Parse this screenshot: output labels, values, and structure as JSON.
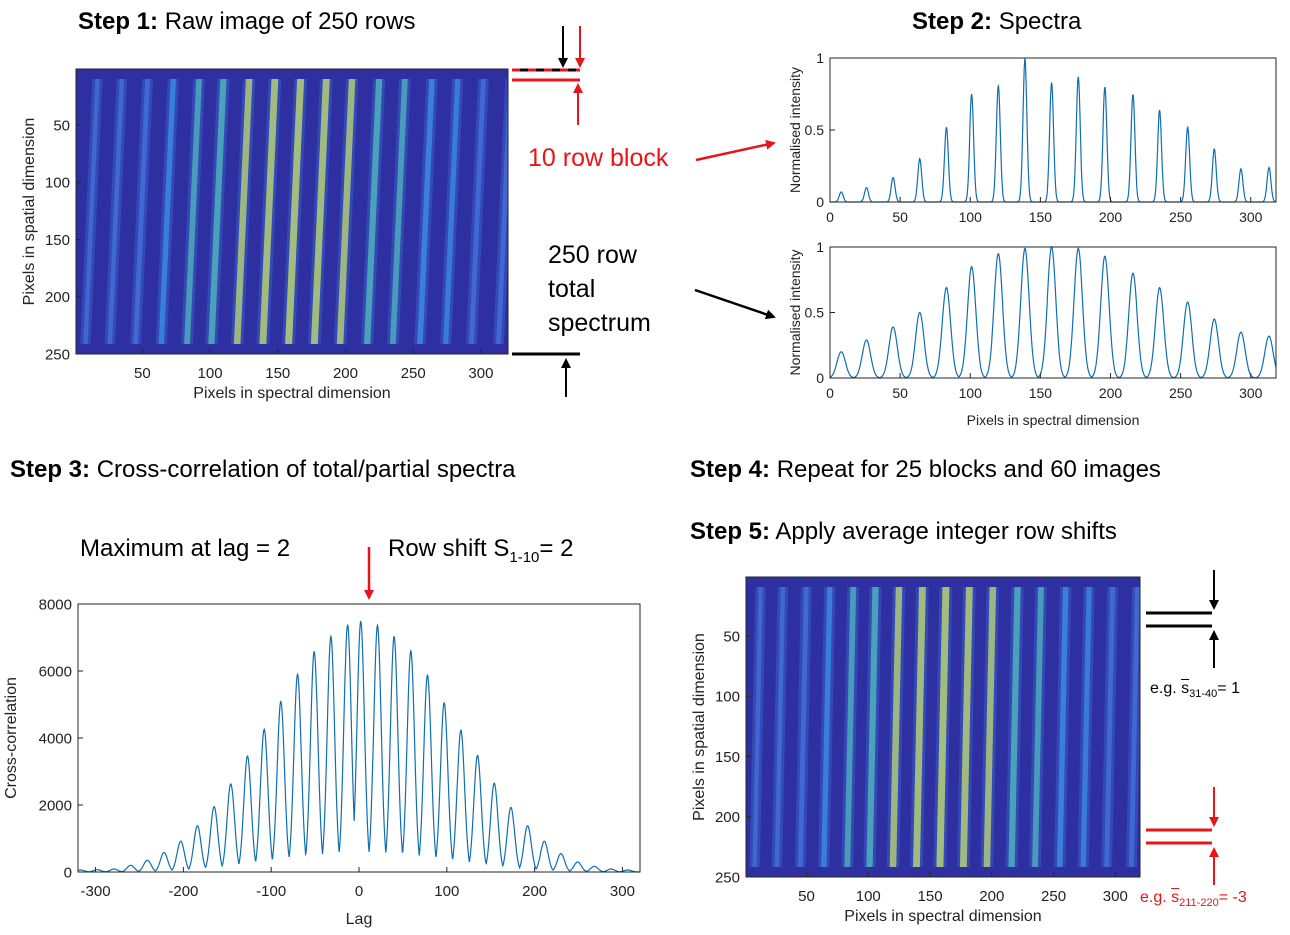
{
  "step1": {
    "label": "Step 1:",
    "text": "Raw image of 250 rows"
  },
  "step2": {
    "label": "Step 2:",
    "text": "Spectra"
  },
  "step3": {
    "label": "Step 3:",
    "text": "Cross-correlation of total/partial spectra"
  },
  "step4": {
    "label": "Step 4:",
    "text": "Repeat for 25 blocks and 60 images"
  },
  "step5": {
    "label": "Step 5:",
    "text": "Apply average integer row shifts"
  },
  "annotations": {
    "block10": "10 row block",
    "total250": [
      "250 row",
      "total",
      "spectrum"
    ],
    "max_lag": "Maximum at lag = 2",
    "row_shift": {
      "prefix": "Row shift S",
      "sub": "1-10",
      "suffix": "= 2"
    },
    "eg1": {
      "prefix": "e.g. ",
      "symbol": "s",
      "sub": "31-40",
      "suffix": "= 1"
    },
    "eg2": {
      "prefix": "e.g. ",
      "symbol": "s",
      "sub": "211-220",
      "suffix": "= -3"
    }
  },
  "colors": {
    "red": "#e8141a",
    "line": "#0f6fb0",
    "image_bg": "#2e2fa0",
    "stripe_hot": "#d9e04a"
  },
  "chart_data": [
    {
      "type": "heatmap",
      "id": "raw-image",
      "xlabel": "Pixels in spectral dimension",
      "ylabel": "Pixels in spatial dimension",
      "xticks": [
        "50",
        "100",
        "150",
        "200",
        "250",
        "300"
      ],
      "yticks": [
        "50",
        "100",
        "150",
        "200",
        "250"
      ],
      "xlim": [
        1,
        320
      ],
      "ylim": [
        1,
        250
      ],
      "stripe_centers": [
        8,
        26,
        45,
        64,
        83,
        101,
        120,
        139,
        158,
        177,
        196,
        216,
        235,
        255,
        274,
        293,
        313
      ],
      "stripe_intensity": [
        0.15,
        0.2,
        0.3,
        0.45,
        0.6,
        0.75,
        0.85,
        0.95,
        1.0,
        0.95,
        0.85,
        0.75,
        0.6,
        0.5,
        0.4,
        0.3,
        0.25
      ]
    },
    {
      "type": "line",
      "id": "spectrum-10row",
      "xlabel": "",
      "ylabel": "Normalised intensity",
      "xticks": [
        "0",
        "50",
        "100",
        "150",
        "200",
        "250",
        "300"
      ],
      "yticks": [
        "0",
        "0.5",
        "1"
      ],
      "xlim": [
        0,
        318
      ],
      "ylim": [
        0,
        1
      ],
      "peaks_x": [
        8,
        26,
        45,
        64,
        83,
        101,
        120,
        139,
        158,
        177,
        196,
        216,
        235,
        255,
        274,
        293,
        313
      ],
      "peaks_y": [
        0.07,
        0.1,
        0.17,
        0.3,
        0.52,
        0.75,
        0.81,
        1.0,
        0.83,
        0.87,
        0.8,
        0.75,
        0.64,
        0.52,
        0.37,
        0.23,
        0.24
      ]
    },
    {
      "type": "line",
      "id": "spectrum-total",
      "xlabel": "Pixels in spectral dimension",
      "ylabel": "Normalised intensity",
      "xticks": [
        "0",
        "50",
        "100",
        "150",
        "200",
        "250",
        "300"
      ],
      "yticks": [
        "0",
        "0.5",
        "1"
      ],
      "xlim": [
        0,
        318
      ],
      "ylim": [
        0,
        1
      ],
      "peaks_x": [
        8,
        26,
        45,
        64,
        83,
        101,
        120,
        139,
        158,
        177,
        196,
        216,
        235,
        255,
        274,
        293,
        313
      ],
      "peaks_y": [
        0.2,
        0.29,
        0.39,
        0.5,
        0.69,
        0.85,
        0.95,
        0.99,
        1.0,
        0.99,
        0.93,
        0.8,
        0.69,
        0.58,
        0.45,
        0.35,
        0.32
      ]
    },
    {
      "type": "line",
      "id": "cross-correlation",
      "xlabel": "Lag",
      "ylabel": "Cross-correlation",
      "xticks": [
        "-300",
        "-200",
        "-100",
        "0",
        "100",
        "200",
        "300"
      ],
      "yticks": [
        "0",
        "2000",
        "4000",
        "6000",
        "8000"
      ],
      "xlim": [
        -320,
        320
      ],
      "ylim": [
        0,
        8000
      ],
      "peaks_x": [
        -317,
        -298,
        -279,
        -260,
        -241,
        -222,
        -203,
        -184,
        -165,
        -146,
        -127,
        -108,
        -89,
        -70,
        -51,
        -32,
        -13,
        2,
        21,
        40,
        59,
        78,
        97,
        116,
        135,
        154,
        173,
        192,
        211,
        230,
        249,
        268,
        287,
        306
      ],
      "peaks_y": [
        60,
        70,
        90,
        200,
        350,
        580,
        920,
        1380,
        1950,
        2630,
        3460,
        4260,
        5090,
        5900,
        6580,
        7030,
        7380,
        7480,
        7360,
        7030,
        6600,
        5880,
        5050,
        4230,
        3480,
        2650,
        1930,
        1380,
        920,
        550,
        300,
        170,
        90,
        60
      ]
    },
    {
      "type": "heatmap",
      "id": "corrected-image",
      "xlabel": "Pixels in spectral dimension",
      "ylabel": "Pixels in spatial dimension",
      "xticks": [
        "50",
        "100",
        "150",
        "200",
        "250",
        "300"
      ],
      "yticks": [
        "50",
        "100",
        "150",
        "200",
        "250"
      ],
      "xlim": [
        1,
        320
      ],
      "ylim": [
        1,
        250
      ],
      "stripe_centers": [
        8,
        26,
        45,
        64,
        83,
        101,
        120,
        139,
        158,
        177,
        196,
        216,
        235,
        255,
        274,
        293,
        313
      ],
      "stripe_intensity": [
        0.15,
        0.2,
        0.3,
        0.45,
        0.6,
        0.75,
        0.85,
        0.95,
        1.0,
        0.95,
        0.85,
        0.75,
        0.6,
        0.5,
        0.4,
        0.3,
        0.25
      ]
    }
  ]
}
